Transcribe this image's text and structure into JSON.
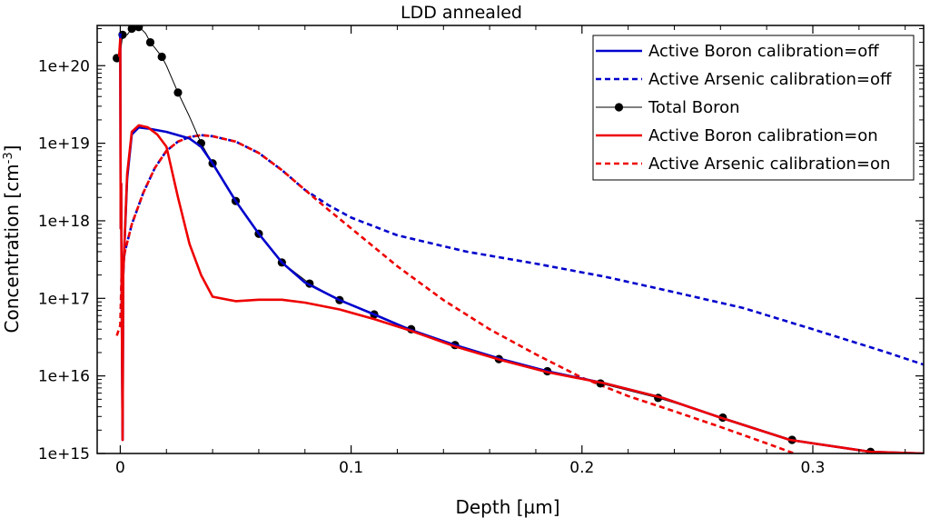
{
  "chart_data": {
    "type": "line",
    "title": "LDD annealed",
    "xlabel": "Depth [µm]",
    "ylabel": "Concentration [cm-3]",
    "ylabel_parts": {
      "main": "Concentration [cm",
      "sup": "-3",
      "end": "]"
    },
    "xlim": [
      -0.01,
      0.348
    ],
    "ylim": [
      1000000000000000.0,
      3.3e+20
    ],
    "yscale": "log",
    "grid": false,
    "legend_position": "top-right",
    "x_ticks": [
      {
        "value": 0,
        "label": "0"
      },
      {
        "value": 0.1,
        "label": "0.1"
      },
      {
        "value": 0.2,
        "label": "0.2"
      },
      {
        "value": 0.3,
        "label": "0.3"
      }
    ],
    "y_ticks": [
      {
        "value": 1000000000000000.0,
        "label": "1e+15"
      },
      {
        "value": 1e+16,
        "label": "1e+16"
      },
      {
        "value": 1e+17,
        "label": "1e+17"
      },
      {
        "value": 1e+18,
        "label": "1e+18"
      },
      {
        "value": 1e+19,
        "label": "1e+19"
      },
      {
        "value": 1e+20,
        "label": "1e+20"
      }
    ],
    "series": [
      {
        "name": "Active Boron calibration=off",
        "color": "#0000cc",
        "dash": "solid",
        "marker": "none",
        "points": [
          [
            -0.0005,
            2.5e+20
          ],
          [
            0.0,
            2.6e+20
          ],
          [
            0.0002,
            8e+17
          ],
          [
            0.0004,
            3e+18
          ],
          [
            0.0006,
            1.6e+17
          ],
          [
            0.0008,
            1.2e+16
          ],
          [
            0.001,
            1500000000000000.0
          ],
          [
            0.0013,
            2e+17
          ],
          [
            0.003,
            3.5e+18
          ],
          [
            0.005,
            1.3e+19
          ],
          [
            0.008,
            1.6e+19
          ],
          [
            0.012,
            1.55e+19
          ],
          [
            0.02,
            1.4e+19
          ],
          [
            0.03,
            1.15e+19
          ],
          [
            0.035,
            9e+18
          ],
          [
            0.04,
            5.5e+18
          ],
          [
            0.05,
            1.8e+18
          ],
          [
            0.06,
            6.8e+17
          ],
          [
            0.07,
            2.9e+17
          ],
          [
            0.08,
            1.6e+17
          ],
          [
            0.095,
            9.5e+16
          ],
          [
            0.11,
            6.2e+16
          ],
          [
            0.125,
            4e+16
          ],
          [
            0.145,
            2.5e+16
          ],
          [
            0.165,
            1.65e+16
          ],
          [
            0.185,
            1.15e+16
          ],
          [
            0.21,
            8000000000000000.0
          ],
          [
            0.235,
            5200000000000000.0
          ],
          [
            0.26,
            2900000000000000.0
          ],
          [
            0.29,
            1500000000000000.0
          ],
          [
            0.325,
            1050000000000000.0
          ],
          [
            0.348,
            1000000000000000.0
          ]
        ]
      },
      {
        "name": "Active Arsenic calibration=off",
        "color": "#0000cc",
        "dash": "dashed",
        "marker": "none",
        "points": [
          [
            0.0005,
            2e+17
          ],
          [
            0.002,
            4e+17
          ],
          [
            0.005,
            9e+17
          ],
          [
            0.01,
            2.3e+18
          ],
          [
            0.015,
            4.8e+18
          ],
          [
            0.02,
            8e+18
          ],
          [
            0.025,
            1.05e+19
          ],
          [
            0.03,
            1.2e+19
          ],
          [
            0.035,
            1.27e+19
          ],
          [
            0.04,
            1.23e+19
          ],
          [
            0.05,
            1.05e+19
          ],
          [
            0.06,
            7.5e+18
          ],
          [
            0.07,
            4.5e+18
          ],
          [
            0.08,
            2.5e+18
          ],
          [
            0.09,
            1.6e+18
          ],
          [
            0.1,
            1.1e+18
          ],
          [
            0.12,
            6.5e+17
          ],
          [
            0.15,
            4e+17
          ],
          [
            0.18,
            2.8e+17
          ],
          [
            0.21,
            1.9e+17
          ],
          [
            0.24,
            1.2e+17
          ],
          [
            0.27,
            7.5e+16
          ],
          [
            0.3,
            4e+16
          ],
          [
            0.33,
            2.1e+16
          ],
          [
            0.348,
            1.4e+16
          ]
        ]
      },
      {
        "name": "Total Boron",
        "color": "#000000",
        "dash": "solid",
        "marker": "circle",
        "points": [
          [
            -0.0015,
            1.25e+20
          ],
          [
            0.0,
            1.4e+20
          ],
          [
            0.001,
            2.5e+20
          ],
          [
            0.003,
            2.5e+20
          ],
          [
            0.005,
            3e+20
          ],
          [
            0.007,
            3.2e+20
          ],
          [
            0.008,
            3.15e+20
          ],
          [
            0.009,
            3e+20
          ],
          [
            0.011,
            2.6e+20
          ],
          [
            0.013,
            2e+20
          ],
          [
            0.015,
            1.7e+20
          ],
          [
            0.018,
            1.3e+20
          ],
          [
            0.02,
            1e+20
          ],
          [
            0.025,
            4.5e+19
          ],
          [
            0.03,
            2.2e+19
          ],
          [
            0.035,
            1e+19
          ],
          [
            0.04,
            5.5e+18
          ],
          [
            0.05,
            1.8e+18
          ],
          [
            0.06,
            6.8e+17
          ],
          [
            0.07,
            2.9e+17
          ],
          [
            0.082,
            1.55e+17
          ],
          [
            0.095,
            9.5e+16
          ],
          [
            0.11,
            6.2e+16
          ],
          [
            0.126,
            4e+16
          ],
          [
            0.145,
            2.5e+16
          ],
          [
            0.164,
            1.65e+16
          ],
          [
            0.185,
            1.15e+16
          ],
          [
            0.208,
            8000000000000000.0
          ],
          [
            0.233,
            5200000000000000.0
          ],
          [
            0.261,
            2900000000000000.0
          ],
          [
            0.291,
            1500000000000000.0
          ],
          [
            0.325,
            1050000000000000.0
          ]
        ],
        "marker_points": [
          [
            -0.0015,
            1.25e+20
          ],
          [
            0.001,
            2.5e+20
          ],
          [
            0.005,
            3e+20
          ],
          [
            0.008,
            3.15e+20
          ],
          [
            0.013,
            2e+20
          ],
          [
            0.018,
            1.3e+20
          ],
          [
            0.025,
            4.5e+19
          ],
          [
            0.035,
            1e+19
          ],
          [
            0.04,
            5.5e+18
          ],
          [
            0.05,
            1.8e+18
          ],
          [
            0.06,
            6.8e+17
          ],
          [
            0.07,
            2.9e+17
          ],
          [
            0.082,
            1.55e+17
          ],
          [
            0.095,
            9.5e+16
          ],
          [
            0.11,
            6.2e+16
          ],
          [
            0.126,
            4e+16
          ],
          [
            0.145,
            2.5e+16
          ],
          [
            0.164,
            1.65e+16
          ],
          [
            0.185,
            1.15e+16
          ],
          [
            0.208,
            8000000000000000.0
          ],
          [
            0.233,
            5200000000000000.0
          ],
          [
            0.261,
            2900000000000000.0
          ],
          [
            0.291,
            1500000000000000.0
          ],
          [
            0.325,
            1050000000000000.0
          ]
        ]
      },
      {
        "name": "Active Boron calibration=on",
        "color": "#ee0000",
        "dash": "solid",
        "marker": "none",
        "points": [
          [
            -0.0005,
            1.3e+20
          ],
          [
            0.0,
            2.2e+20
          ],
          [
            0.0002,
            8e+17
          ],
          [
            0.0004,
            3e+18
          ],
          [
            0.0006,
            1.6e+17
          ],
          [
            0.0008,
            1.2e+16
          ],
          [
            0.001,
            1500000000000000.0
          ],
          [
            0.0013,
            2e+17
          ],
          [
            0.003,
            4e+18
          ],
          [
            0.005,
            1.4e+19
          ],
          [
            0.008,
            1.7e+19
          ],
          [
            0.012,
            1.6e+19
          ],
          [
            0.016,
            1.3e+19
          ],
          [
            0.02,
            9e+18
          ],
          [
            0.025,
            2e+18
          ],
          [
            0.03,
            5e+17
          ],
          [
            0.035,
            2e+17
          ],
          [
            0.04,
            1.05e+17
          ],
          [
            0.05,
            9.2e+16
          ],
          [
            0.06,
            9.6e+16
          ],
          [
            0.07,
            9.6e+16
          ],
          [
            0.08,
            8.8e+16
          ],
          [
            0.095,
            7.2e+16
          ],
          [
            0.11,
            5.4e+16
          ],
          [
            0.125,
            3.9e+16
          ],
          [
            0.145,
            2.4e+16
          ],
          [
            0.165,
            1.6e+16
          ],
          [
            0.185,
            1.12e+16
          ],
          [
            0.21,
            8000000000000000.0
          ],
          [
            0.235,
            5200000000000000.0
          ],
          [
            0.26,
            2900000000000000.0
          ],
          [
            0.29,
            1500000000000000.0
          ],
          [
            0.325,
            1050000000000000.0
          ],
          [
            0.348,
            1000000000000000.0
          ]
        ]
      },
      {
        "name": "Active Arsenic calibration=on",
        "color": "#ee0000",
        "dash": "dashed",
        "marker": "none",
        "points": [
          [
            -0.0015,
            3.3e+16
          ],
          [
            0.0,
            4.5e+16
          ],
          [
            0.0005,
            1.8e+17
          ],
          [
            0.002,
            4e+17
          ],
          [
            0.005,
            9e+17
          ],
          [
            0.01,
            2.3e+18
          ],
          [
            0.015,
            4.8e+18
          ],
          [
            0.02,
            8e+18
          ],
          [
            0.025,
            1.05e+19
          ],
          [
            0.03,
            1.2e+19
          ],
          [
            0.035,
            1.27e+19
          ],
          [
            0.04,
            1.23e+19
          ],
          [
            0.05,
            1.05e+19
          ],
          [
            0.06,
            7.5e+18
          ],
          [
            0.07,
            4.5e+18
          ],
          [
            0.08,
            2.5e+18
          ],
          [
            0.09,
            1.4e+18
          ],
          [
            0.1,
            8e+17
          ],
          [
            0.12,
            2.6e+17
          ],
          [
            0.14,
            9.5e+16
          ],
          [
            0.16,
            4e+16
          ],
          [
            0.18,
            1.9e+16
          ],
          [
            0.2,
            9500000000000000.0
          ],
          [
            0.22,
            5500000000000000.0
          ],
          [
            0.24,
            3500000000000000.0
          ],
          [
            0.26,
            2200000000000000.0
          ],
          [
            0.28,
            1350000000000000.0
          ],
          [
            0.294,
            950000000000000.0
          ]
        ]
      }
    ]
  }
}
